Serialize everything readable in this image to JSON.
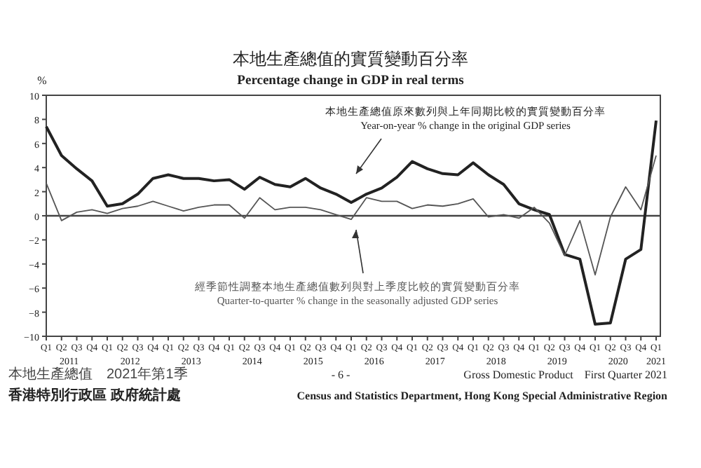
{
  "chart_data": {
    "type": "line",
    "title": "本地生產總值的實質變動百分率",
    "subtitle": "Percentage change in GDP in real terms",
    "ylabel": "%",
    "categories": [
      "Q1",
      "Q2",
      "Q3",
      "Q4",
      "Q1",
      "Q2",
      "Q3",
      "Q4",
      "Q1",
      "Q2",
      "Q3",
      "Q4",
      "Q1",
      "Q2",
      "Q3",
      "Q4",
      "Q1",
      "Q2",
      "Q3",
      "Q4",
      "Q1",
      "Q2",
      "Q3",
      "Q4",
      "Q1",
      "Q2",
      "Q3",
      "Q4",
      "Q1",
      "Q2",
      "Q3",
      "Q4",
      "Q1",
      "Q2",
      "Q3",
      "Q4",
      "Q1",
      "Q2",
      "Q3",
      "Q4",
      "Q1"
    ],
    "series": [
      {
        "name": "Year-on-year % change in the original GDP series",
        "color": "#222222",
        "values": [
          7.4,
          5.0,
          3.9,
          2.9,
          0.8,
          1.0,
          1.8,
          3.1,
          3.4,
          3.1,
          3.1,
          2.9,
          3.0,
          2.2,
          3.2,
          2.6,
          2.4,
          3.1,
          2.3,
          1.8,
          1.1,
          1.8,
          2.3,
          3.2,
          4.5,
          3.9,
          3.5,
          3.4,
          4.4,
          3.4,
          2.6,
          1.0,
          0.5,
          0.1,
          -3.2,
          -3.6,
          -9.0,
          -8.9,
          -3.6,
          -2.8,
          7.9
        ]
      },
      {
        "name": "Quarter-to-quarter % change in the seasonally adjusted GDP series",
        "color": "#555555",
        "values": [
          2.7,
          -0.4,
          0.3,
          0.5,
          0.2,
          0.6,
          0.8,
          1.2,
          0.8,
          0.4,
          0.7,
          0.9,
          0.9,
          -0.2,
          1.5,
          0.5,
          0.7,
          0.7,
          0.5,
          0.1,
          -0.3,
          1.5,
          1.2,
          1.2,
          0.6,
          0.9,
          0.8,
          1.0,
          1.4,
          -0.1,
          0.1,
          -0.2,
          0.7,
          -0.6,
          -3.3,
          -0.4,
          -4.9,
          -0.1,
          2.4,
          0.5,
          5.0
        ]
      }
    ],
    "ylim": [
      -10,
      10
    ],
    "yticks": [
      -10,
      -8,
      -6,
      -4,
      -2,
      0,
      2,
      4,
      6,
      8,
      10
    ],
    "grid": false,
    "marker": "none",
    "line_style": "solid",
    "ref_lines": [
      {
        "axis": "y",
        "value": 0
      }
    ],
    "annotations": [
      "本地生產總值原來數列與上年同期比較的實質變動百分率",
      "經季節性調整本地生產總值數列與對上季度比較的實質變動百分率",
      "2011",
      "2012",
      "2013",
      "2014",
      "2015",
      "2016",
      "2017",
      "2018",
      "2019",
      "2020",
      "2021",
      "本地生產總值　2021年第1季",
      "- 6 -",
      "Gross Domestic Product　First Quarter 2021",
      "香港特別行政區 政府統計處",
      "Census and Statistics Department, Hong Kong Special Administrative Region"
    ]
  }
}
